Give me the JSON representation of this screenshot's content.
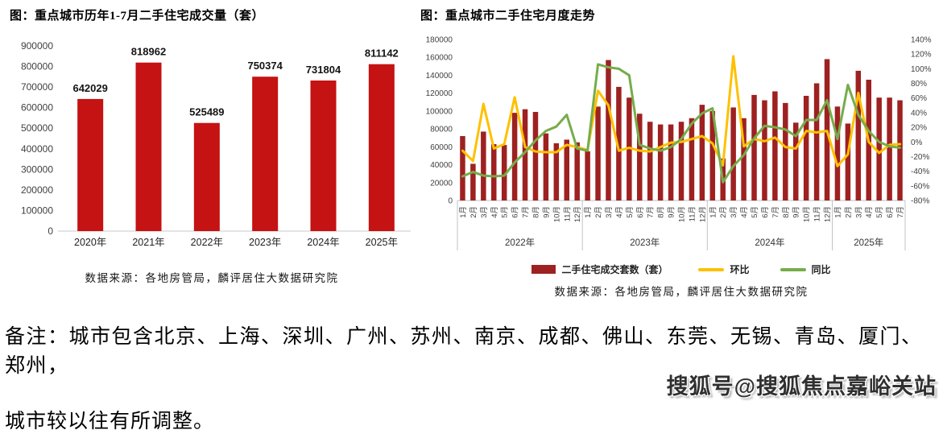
{
  "note": {
    "line1": "备注：城市包含北京、上海、深圳、广州、苏州、南京、成都、佛山、东莞、无锡、青岛、厦门、郑州，",
    "line2": "城市较以往有所调整。"
  },
  "watermark": "搜狐号@搜狐焦点嘉峪关站",
  "colors": {
    "annual_bar": "#C51212",
    "monthly_bar": "#9E2121",
    "mom_line": "#FFC000",
    "yoy_line": "#76AC4B",
    "axis_line": "#C8C8C8",
    "tick_text": "#3F3F3F"
  },
  "chart_data": [
    {
      "id": "annual",
      "type": "bar",
      "title": "图：重点城市历年1-7月二手住宅成交量（套）",
      "categories": [
        "2020年",
        "2021年",
        "2022年",
        "2023年",
        "2024年",
        "2025年"
      ],
      "values": [
        642029,
        818962,
        525489,
        750374,
        731804,
        811142
      ],
      "bar_color": "#C51212",
      "ylim": [
        0,
        900000
      ],
      "ytick": 100000,
      "grid": false,
      "source": "数据来源：各地房管局，麟评居住大数据研究院"
    },
    {
      "id": "monthly",
      "type": "bar+line",
      "title": "图：重点城市二手住宅月度走势",
      "year_groups": [
        {
          "label": "2022年",
          "months": 12
        },
        {
          "label": "2023年",
          "months": 12
        },
        {
          "label": "2024年",
          "months": 12
        },
        {
          "label": "2025年",
          "months": 7
        }
      ],
      "x_labels": [
        "1月",
        "2月",
        "3月",
        "4月",
        "5月",
        "6月",
        "7月",
        "8月",
        "9月",
        "10月",
        "11月",
        "12月",
        "1月",
        "2月",
        "3月",
        "4月",
        "5月",
        "6月",
        "7月",
        "8月",
        "9月",
        "10月",
        "11月",
        "12月",
        "1月",
        "2月",
        "3月",
        "4月",
        "5月",
        "6月",
        "7月",
        "8月",
        "9月",
        "10月",
        "11月",
        "12月",
        "1月",
        "2月",
        "3月",
        "4月",
        "5月",
        "6月",
        "7月"
      ],
      "left_axis": {
        "min": 0,
        "max": 180000,
        "step": 20000
      },
      "right_axis": {
        "min": -80,
        "max": 140,
        "step": 20,
        "suffix": "%"
      },
      "series": [
        {
          "name": "二手住宅成交套数（套）",
          "type": "bar",
          "axis": "left",
          "color": "#9E2121",
          "values": [
            72000,
            41000,
            77000,
            63000,
            62000,
            98000,
            102000,
            99000,
            75000,
            64000,
            68000,
            65000,
            55000,
            105000,
            157000,
            127000,
            115000,
            97000,
            88000,
            85000,
            85000,
            88000,
            92000,
            107000,
            100000,
            47000,
            104000,
            92000,
            118000,
            112000,
            122000,
            109000,
            87000,
            117000,
            131000,
            158000,
            105000,
            86000,
            145000,
            135000,
            115000,
            115000,
            112000
          ]
        },
        {
          "name": "环比",
          "type": "line",
          "axis": "right",
          "color": "#FFC000",
          "values": [
            -12,
            -26,
            52,
            -9,
            -3,
            61,
            -7,
            -13,
            -14,
            -14,
            -4,
            -7,
            -11,
            70,
            50,
            -12,
            -8,
            -12,
            -13,
            -7,
            -1,
            0,
            4,
            8,
            -2,
            -32,
            117,
            -6,
            4,
            1,
            6,
            -7,
            -9,
            15,
            13,
            15,
            -33,
            -17,
            67,
            0,
            -15,
            -4,
            -3
          ]
        },
        {
          "name": "同比",
          "type": "line",
          "axis": "right",
          "color": "#76AC4B",
          "values": [
            -47,
            -41,
            -46,
            -47,
            -46,
            -28,
            -14,
            2,
            15,
            21,
            37,
            -9,
            -12,
            106,
            102,
            100,
            91,
            -4,
            -9,
            -12,
            -7,
            4,
            25,
            39,
            46,
            -55,
            -33,
            -18,
            5,
            22,
            20,
            17,
            8,
            30,
            30,
            57,
            4,
            78,
            37,
            15,
            0,
            -6,
            -8
          ]
        }
      ],
      "legend_position": "bottom",
      "grid": false,
      "source": "数据来源：各地房管局，麟评居住大数据研究院"
    }
  ]
}
